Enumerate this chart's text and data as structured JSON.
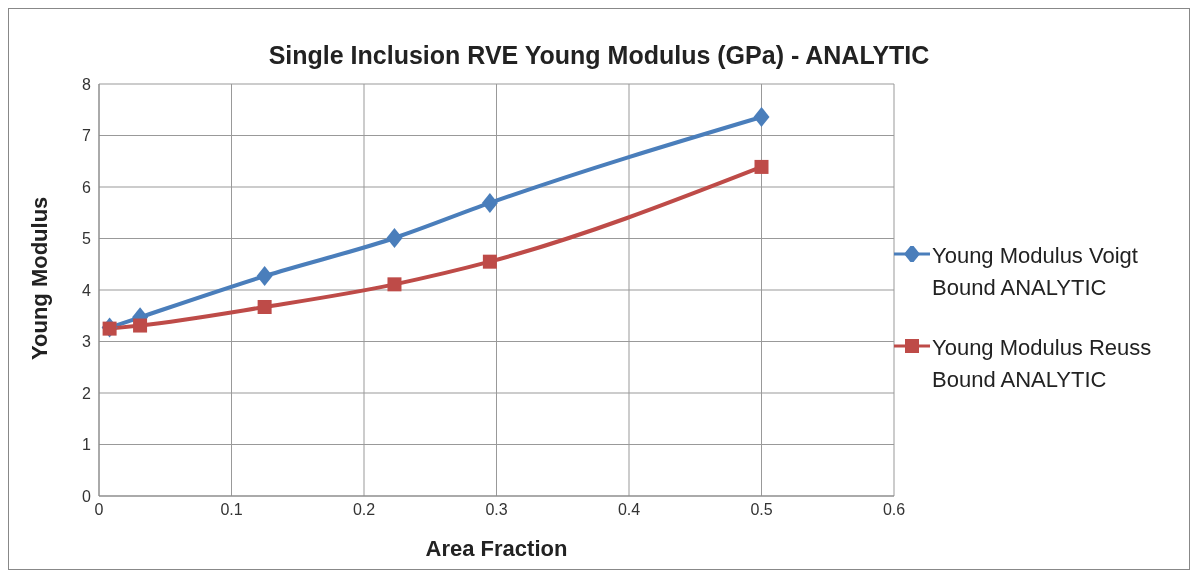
{
  "chart_data": {
    "type": "line",
    "title": "Single Inclusion RVE  Young Modulus (GPa) - ANALYTIC",
    "xlabel": "Area Fraction",
    "ylabel": "Young Modulus",
    "x": [
      0.008,
      0.031,
      0.125,
      0.223,
      0.295,
      0.5
    ],
    "series": [
      {
        "name": "Young Modulus Voigt Bound ANALYTIC",
        "color": "#4a7ebb",
        "marker": "diamond",
        "values": [
          3.27,
          3.47,
          4.27,
          5.01,
          5.69,
          7.36
        ]
      },
      {
        "name": "Young Modulus Reuss Bound ANALYTIC",
        "color": "#be4b48",
        "marker": "square",
        "values": [
          3.25,
          3.31,
          3.67,
          4.11,
          4.55,
          6.39
        ]
      }
    ],
    "xlim": [
      0,
      0.6
    ],
    "xticks": [
      0,
      0.1,
      0.2,
      0.3,
      0.4,
      0.5,
      0.6
    ],
    "ylim": [
      0,
      8
    ],
    "yticks": [
      0,
      1,
      2,
      3,
      4,
      5,
      6,
      7,
      8
    ],
    "grid": true,
    "legend": "right",
    "line_style": "solid"
  }
}
